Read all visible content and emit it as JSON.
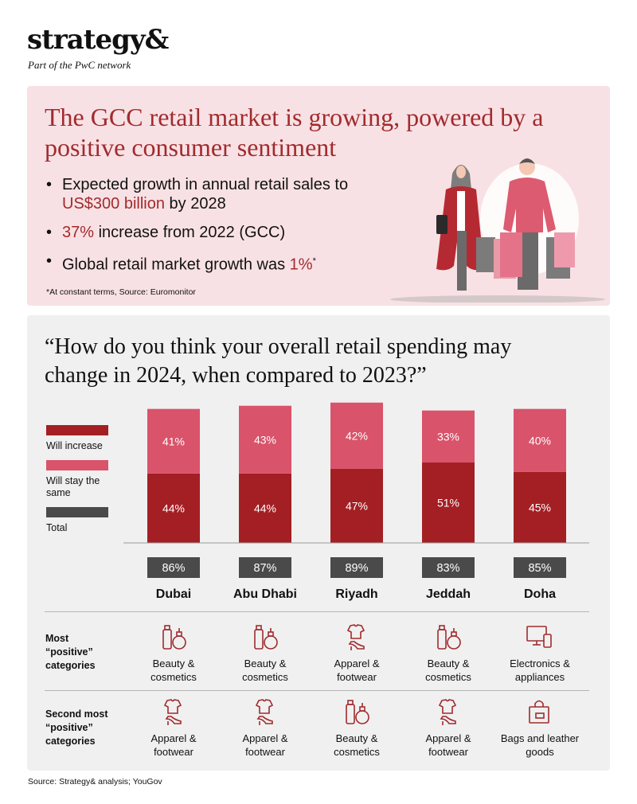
{
  "brand": {
    "logo": "strategy&",
    "tagline": "Part of the PwC network"
  },
  "intro": {
    "headline": "The GCC retail market is growing, powered by a positive consumer sentiment",
    "bullets": [
      {
        "pre": "Expected growth in annual retail sales to ",
        "highlight": "US$300 billion",
        "post": " by 2028"
      },
      {
        "pre": "",
        "highlight": "37%",
        "post": " increase from 2022 (GCC)"
      },
      {
        "pre": "Global retail market growth was ",
        "highlight": "1%",
        "post": "",
        "sup": "*"
      }
    ],
    "footnote": "*At constant terms, Source: Euromonitor"
  },
  "survey": {
    "question": "“How do you think your overall retail spending may change in 2024, when compared to 2023?”"
  },
  "legend": {
    "increase": "Will increase",
    "same": "Will stay the same",
    "total": "Total"
  },
  "colors": {
    "increase": "#a31f24",
    "same": "#d9536a",
    "total": "#4a4a4a",
    "accent": "#a12b2e"
  },
  "chart_data": {
    "type": "bar",
    "stacked": true,
    "categories": [
      "Dubai",
      "Abu Dhabi",
      "Riyadh",
      "Jeddah",
      "Doha"
    ],
    "series": [
      {
        "name": "Will increase",
        "values": [
          44,
          44,
          47,
          51,
          45
        ]
      },
      {
        "name": "Will stay the same",
        "values": [
          41,
          43,
          42,
          33,
          40
        ]
      }
    ],
    "totals": [
      86,
      87,
      89,
      83,
      85
    ],
    "total_label": "Total",
    "value_suffix": "%",
    "legend_position": "left",
    "grid": false
  },
  "categories_table": {
    "row1_label": "Most “positive” categories",
    "row2_label": "Second most “positive” categories",
    "row1": [
      {
        "label": "Beauty & cosmetics",
        "icon": "beauty-icon"
      },
      {
        "label": "Beauty & cosmetics",
        "icon": "beauty-icon"
      },
      {
        "label": "Apparel & footwear",
        "icon": "apparel-icon"
      },
      {
        "label": "Beauty & cosmetics",
        "icon": "beauty-icon"
      },
      {
        "label": "Electronics & appliances",
        "icon": "electronics-icon"
      }
    ],
    "row2": [
      {
        "label": "Apparel & footwear",
        "icon": "apparel-icon"
      },
      {
        "label": "Apparel & footwear",
        "icon": "apparel-icon"
      },
      {
        "label": "Beauty & cosmetics",
        "icon": "beauty-icon"
      },
      {
        "label": "Apparel & footwear",
        "icon": "apparel-icon"
      },
      {
        "label": "Bags and leather goods",
        "icon": "bag-icon"
      }
    ]
  },
  "source": "Source: Strategy& analysis; YouGov"
}
